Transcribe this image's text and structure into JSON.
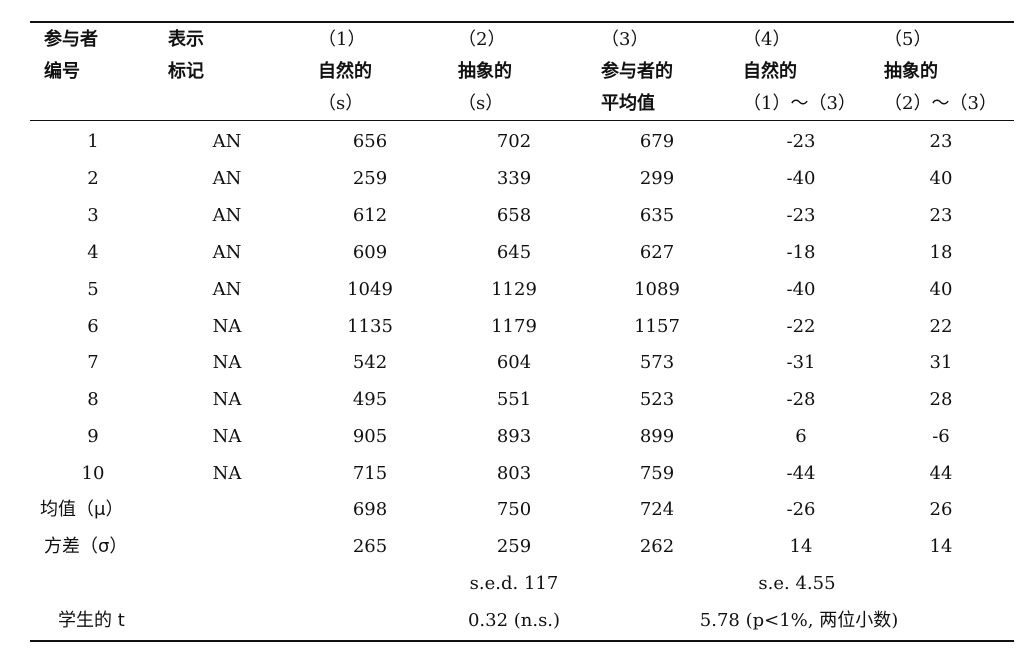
{
  "header": {
    "col0": [
      "参与者",
      "编号"
    ],
    "col1": [
      "表示",
      "标记"
    ],
    "col2": [
      "（1）",
      "自然的",
      "（s）"
    ],
    "col3": [
      "（2）",
      "抽象的",
      "（s）"
    ],
    "col4": [
      "（3）",
      "参与者的",
      "平均值"
    ],
    "col5": [
      "（4）",
      "自然的",
      "（1）～（3）"
    ],
    "col6": [
      "（5）",
      "抽象的",
      "（2）～（3）"
    ]
  },
  "rows": [
    [
      "1",
      "AN",
      "656",
      "702",
      "679",
      "-23",
      "23"
    ],
    [
      "2",
      "AN",
      "259",
      "339",
      "299",
      "-40",
      "40"
    ],
    [
      "3",
      "AN",
      "612",
      "658",
      "635",
      "-23",
      "23"
    ],
    [
      "4",
      "AN",
      "609",
      "645",
      "627",
      "-18",
      "18"
    ],
    [
      "5",
      "AN",
      "1049",
      "1129",
      "1089",
      "-40",
      "40"
    ],
    [
      "6",
      "NA",
      "1135",
      "1179",
      "1157",
      "-22",
      "22"
    ],
    [
      "7",
      "NA",
      "542",
      "604",
      "573",
      "-31",
      "31"
    ],
    [
      "8",
      "NA",
      "495",
      "551",
      "523",
      "-28",
      "28"
    ],
    [
      "9",
      "NA",
      "905",
      "893",
      "899",
      "6",
      "-6"
    ],
    [
      "10",
      "NA",
      "715",
      "803",
      "759",
      "-44",
      "44"
    ]
  ],
  "summary": {
    "mean": {
      "label": "均值（μ）",
      "values": [
        "698",
        "750",
        "724",
        "-26",
        "26"
      ]
    },
    "variance": {
      "label": "方差（σ）",
      "values": [
        "265",
        "259",
        "262",
        "14",
        "14"
      ]
    },
    "sed": "s.e.d. 117",
    "se": "s.e. 4.55",
    "t_label": "学生的 t",
    "t_value_1": "0.32 (n.s.)",
    "t_value_2": "5.78 (p<1%, 两位小数)"
  }
}
